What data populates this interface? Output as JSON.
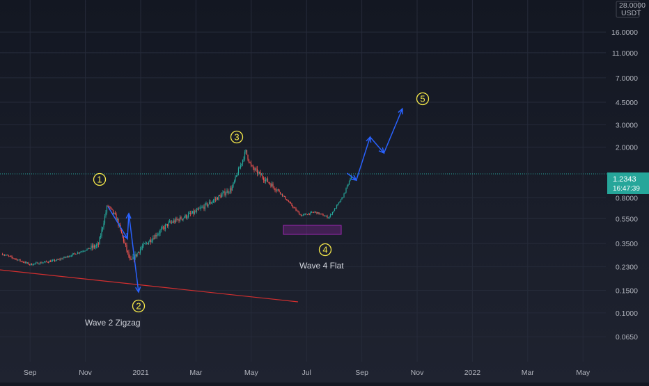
{
  "chart_data": {
    "type": "line",
    "title": "",
    "quote_currency": "USDT",
    "scale": "log",
    "grid": true,
    "ylim": [
      0.05,
      28.0
    ],
    "x_ticks": [
      "Sep",
      "Nov",
      "2021",
      "Mar",
      "May",
      "Jul",
      "Sep",
      "Nov",
      "2022",
      "Mar",
      "May"
    ],
    "y_ticks": [
      "28.0000",
      "16.0000",
      "11.0000",
      "7.0000",
      "4.5000",
      "3.0000",
      "2.0000",
      "0.8000",
      "0.5500",
      "0.3500",
      "0.2300",
      "0.1500",
      "0.1000",
      "0.0650"
    ],
    "current_price": "1.2343",
    "countdown": "16:47:39",
    "series": [
      {
        "type": "candlestick",
        "x": [
          "2020-08",
          "2020-09",
          "2020-10",
          "2020-11-15",
          "2020-11-25",
          "2020-12-05",
          "2020-12-20",
          "2021-01-01",
          "2021-02",
          "2021-03",
          "2021-04-10",
          "2021-04-25",
          "2021-05",
          "2021-06-01",
          "2021-06-25",
          "2021-07-10",
          "2021-07-25",
          "2021-08-10",
          "2021-08-20"
        ],
        "close": [
          0.29,
          0.24,
          0.26,
          0.34,
          0.7,
          0.55,
          0.25,
          0.32,
          0.5,
          0.62,
          0.95,
          1.85,
          1.4,
          0.9,
          0.58,
          0.62,
          0.56,
          0.8,
          1.2
        ]
      }
    ],
    "projection": {
      "x": [
        "2021-08-25",
        "2021-09-10",
        "2021-09-25",
        "2021-10-15"
      ],
      "y": [
        1.1,
        2.4,
        1.8,
        4.0
      ]
    },
    "annotations": {
      "wave_labels": [
        "1",
        "2",
        "3",
        "4",
        "5"
      ],
      "wave2_text": "Wave 2 Zigzag",
      "wave4_text": "Wave 4 Flat"
    },
    "colors": {
      "background": "#141823",
      "up": "#26a69a",
      "down": "#ef5350",
      "projection": "#2962ff",
      "wave_label": "#f5e84a",
      "trendline": "#d32f2f",
      "flat_box": "#9c27b0",
      "price_tag": "#26a69a"
    }
  }
}
